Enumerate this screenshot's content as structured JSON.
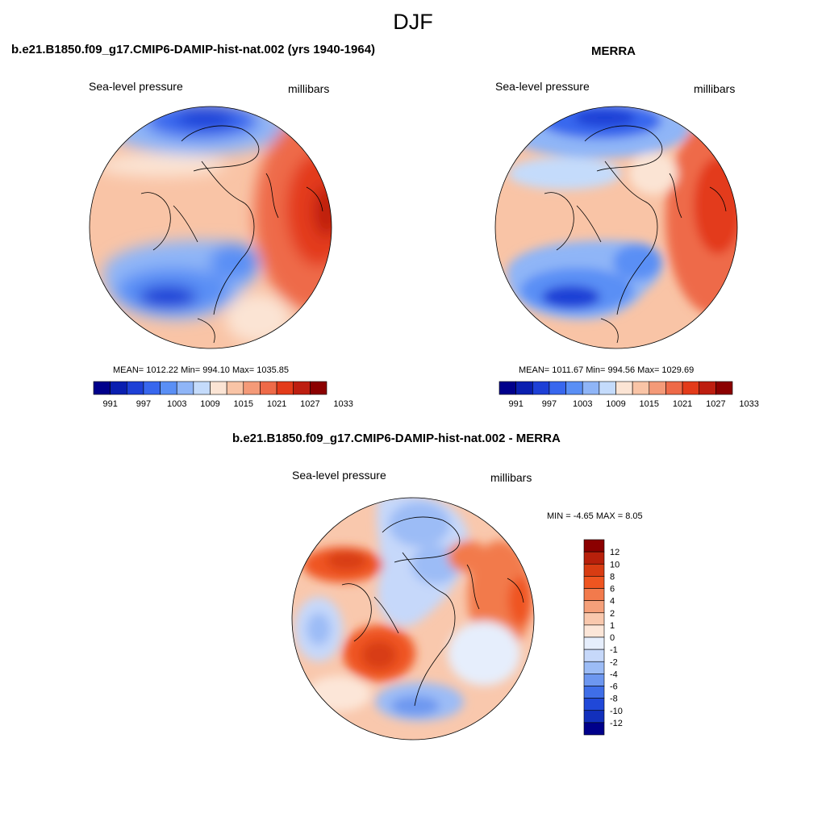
{
  "page": {
    "title": "DJF"
  },
  "panels": [
    {
      "title": "b.e21.B1850.f09_g17.CMIP6-DAMIP-hist-nat.002 (yrs 1940-1964)",
      "variable": "Sea-level pressure",
      "units": "millibars",
      "stats": "MEAN= 1012.22  Min= 994.10  Max= 1035.85"
    },
    {
      "title": "MERRA",
      "variable": "Sea-level pressure",
      "units": "millibars",
      "stats": "MEAN= 1011.67  Min= 994.56  Max= 1029.69"
    },
    {
      "title": "b.e21.B1850.f09_g17.CMIP6-DAMIP-hist-nat.002 - MERRA",
      "variable": "Sea-level pressure",
      "units": "millibars",
      "stats": "MIN =  -4.65 MAX =   8.05"
    }
  ],
  "colors": {
    "abs_levels": [
      "#00008b",
      "#0a1fb0",
      "#1e40d6",
      "#3867ee",
      "#5a8ff5",
      "#8fb5f7",
      "#c4dbfb",
      "#fbe4d4",
      "#f9c4a6",
      "#f49a78",
      "#ee6a48",
      "#e33b1a",
      "#bd1e10",
      "#8b0000"
    ],
    "diff_levels": [
      "#8b0000",
      "#b8200b",
      "#d83c12",
      "#ef5520",
      "#f27a4c",
      "#f5a07a",
      "#f9c8ad",
      "#fce6d8",
      "#e6eefc",
      "#c6d8fa",
      "#9cbcf6",
      "#6d97f0",
      "#3f6ee8",
      "#2048d8",
      "#1230bc",
      "#00008b"
    ]
  },
  "chart_data": [
    {
      "type": "heatmap",
      "title": "b.e21.B1850.f09_g17.CMIP6-DAMIP-hist-nat.002 (yrs 1940-1964)",
      "projection": "north-polar-stereographic",
      "variable": "Sea-level pressure",
      "units": "millibars",
      "stats": {
        "mean": 1012.22,
        "min": 994.1,
        "max": 1035.85
      },
      "colorbar": {
        "orientation": "horizontal",
        "tick_labels": [
          "991",
          "997",
          "1003",
          "1009",
          "1015",
          "1021",
          "1027",
          "1033"
        ]
      }
    },
    {
      "type": "heatmap",
      "title": "MERRA",
      "projection": "north-polar-stereographic",
      "variable": "Sea-level pressure",
      "units": "millibars",
      "stats": {
        "mean": 1011.67,
        "min": 994.56,
        "max": 1029.69
      },
      "colorbar": {
        "orientation": "horizontal",
        "tick_labels": [
          "991",
          "997",
          "1003",
          "1009",
          "1015",
          "1021",
          "1027",
          "1033"
        ]
      }
    },
    {
      "type": "heatmap",
      "title": "b.e21.B1850.f09_g17.CMIP6-DAMIP-hist-nat.002 - MERRA",
      "projection": "north-polar-stereographic",
      "variable": "Sea-level pressure",
      "units": "millibars",
      "stats": {
        "min": -4.65,
        "max": 8.05
      },
      "colorbar": {
        "orientation": "vertical",
        "tick_labels": [
          "12",
          "10",
          "8",
          "6",
          "4",
          "2",
          "1",
          "0",
          "-1",
          "-2",
          "-4",
          "-6",
          "-8",
          "-10",
          "-12"
        ]
      }
    }
  ]
}
